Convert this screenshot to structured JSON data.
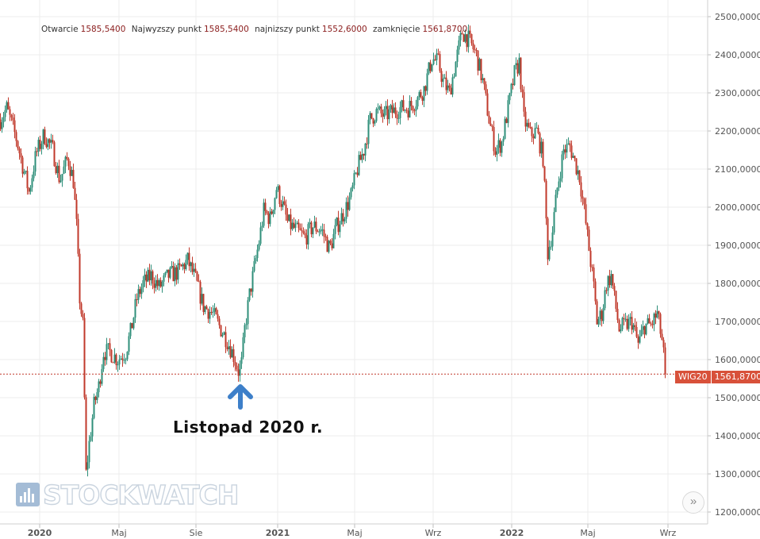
{
  "header": {
    "items": [
      {
        "label": "Otwarcie",
        "value": "1585,5400"
      },
      {
        "label": "Najwyzszy punkt",
        "value": "1585,5400"
      },
      {
        "label": "najnizszy punkt",
        "value": "1552,6000"
      },
      {
        "label": "zamknięcie",
        "value": "1561,8700"
      }
    ]
  },
  "annotation": {
    "text": "Listopad 2020 r.",
    "arrow_color": "#3d7fc9"
  },
  "logo": {
    "text": "STOCKWATCH"
  },
  "price_tag": {
    "name": "WIG20",
    "value": "1561,8700",
    "color": "#d8513a"
  },
  "controls": {
    "scroll_right_icon": "»"
  },
  "chart_data": {
    "type": "candlestick",
    "title": "",
    "xlabel": "",
    "ylabel": "",
    "ylim": [
      1180,
      2530
    ],
    "y_ticks": [
      1200,
      1300,
      1400,
      1500,
      1600,
      1700,
      1800,
      1900,
      2000,
      2100,
      2200,
      2300,
      2400,
      2500
    ],
    "y_tick_labels": [
      "1200,0000",
      "1300,0000",
      "1400,0000",
      "1500,0000",
      "1600,0000",
      "1700,0000",
      "1800,0000",
      "1900,0000",
      "2000,0000",
      "2100,0000",
      "2200,0000",
      "2300,0000",
      "2400,0000",
      "2500,0000"
    ],
    "x_tick_labels": [
      "2020",
      "Maj",
      "Sie",
      "2021",
      "Maj",
      "Wrz",
      "2022",
      "Maj",
      "Wrz"
    ],
    "x_tick_bold": [
      true,
      false,
      false,
      true,
      false,
      false,
      true,
      false,
      false
    ],
    "grid": true,
    "last_close": 1561.87,
    "up_color": "#2f8f7a",
    "down_color": "#c0392b",
    "series": [
      {
        "values": [
          [
            0,
            2230
          ],
          [
            8,
            2260
          ],
          [
            20,
            2180
          ],
          [
            36,
            2040
          ],
          [
            45,
            2140
          ],
          [
            55,
            2190
          ],
          [
            66,
            2150
          ],
          [
            75,
            2070
          ],
          [
            85,
            2130
          ],
          [
            92,
            2070
          ],
          [
            96,
            1950
          ],
          [
            100,
            1760
          ],
          [
            104,
            1690
          ],
          [
            108,
            1300
          ],
          [
            112,
            1380
          ],
          [
            118,
            1480
          ],
          [
            124,
            1530
          ],
          [
            130,
            1620
          ],
          [
            138,
            1620
          ],
          [
            148,
            1600
          ],
          [
            158,
            1620
          ],
          [
            165,
            1680
          ],
          [
            172,
            1760
          ],
          [
            180,
            1800
          ],
          [
            190,
            1820
          ],
          [
            200,
            1790
          ],
          [
            212,
            1820
          ],
          [
            224,
            1830
          ],
          [
            236,
            1860
          ],
          [
            246,
            1810
          ],
          [
            256,
            1740
          ],
          [
            268,
            1720
          ],
          [
            278,
            1680
          ],
          [
            286,
            1650
          ],
          [
            294,
            1610
          ],
          [
            300,
            1570
          ],
          [
            304,
            1590
          ],
          [
            308,
            1680
          ],
          [
            314,
            1770
          ],
          [
            320,
            1840
          ],
          [
            326,
            1910
          ],
          [
            332,
            1990
          ],
          [
            340,
            1970
          ],
          [
            348,
            2050
          ],
          [
            355,
            2010
          ],
          [
            362,
            1960
          ],
          [
            372,
            1940
          ],
          [
            384,
            1920
          ],
          [
            394,
            1950
          ],
          [
            405,
            1940
          ],
          [
            415,
            1890
          ],
          [
            424,
            1950
          ],
          [
            434,
            1990
          ],
          [
            442,
            2030
          ],
          [
            450,
            2100
          ],
          [
            458,
            2150
          ],
          [
            466,
            2230
          ],
          [
            474,
            2250
          ],
          [
            484,
            2240
          ],
          [
            494,
            2250
          ],
          [
            504,
            2260
          ],
          [
            514,
            2260
          ],
          [
            524,
            2280
          ],
          [
            534,
            2310
          ],
          [
            544,
            2390
          ],
          [
            552,
            2380
          ],
          [
            558,
            2330
          ],
          [
            566,
            2300
          ],
          [
            574,
            2380
          ],
          [
            582,
            2460
          ],
          [
            590,
            2440
          ],
          [
            600,
            2400
          ],
          [
            608,
            2330
          ],
          [
            616,
            2230
          ],
          [
            624,
            2150
          ],
          [
            632,
            2170
          ],
          [
            640,
            2260
          ],
          [
            648,
            2350
          ],
          [
            654,
            2380
          ],
          [
            660,
            2230
          ],
          [
            668,
            2190
          ],
          [
            676,
            2200
          ],
          [
            684,
            2130
          ],
          [
            690,
            1880
          ],
          [
            696,
            1940
          ],
          [
            702,
            2050
          ],
          [
            710,
            2150
          ],
          [
            718,
            2160
          ],
          [
            724,
            2120
          ],
          [
            730,
            2080
          ],
          [
            736,
            1990
          ],
          [
            742,
            1890
          ],
          [
            748,
            1790
          ],
          [
            752,
            1700
          ],
          [
            758,
            1720
          ],
          [
            764,
            1800
          ],
          [
            770,
            1820
          ],
          [
            774,
            1760
          ],
          [
            780,
            1680
          ],
          [
            788,
            1690
          ],
          [
            796,
            1700
          ],
          [
            804,
            1640
          ],
          [
            812,
            1690
          ],
          [
            820,
            1690
          ],
          [
            828,
            1720
          ],
          [
            834,
            1650
          ],
          [
            838,
            1575
          ]
        ]
      }
    ]
  }
}
